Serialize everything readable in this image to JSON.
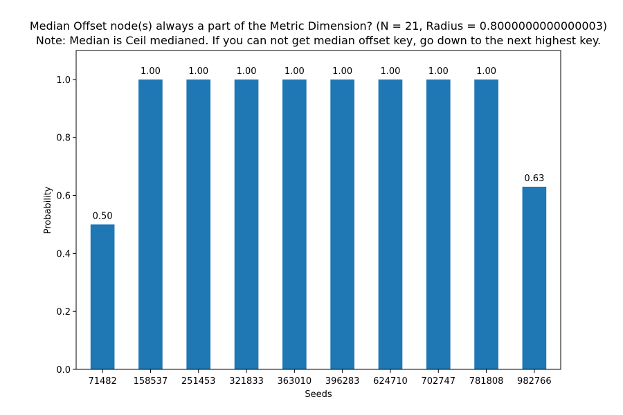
{
  "chart_data": {
    "type": "bar",
    "title_lines": [
      "Median Offset node(s) always a part of the Metric Dimension? (N = 21, Radius = 0.8000000000000003)",
      "Note: Median is Ceil medianed. If you can not get median offset key, go down to the next highest key."
    ],
    "xlabel": "Seeds",
    "ylabel": "Probability",
    "categories": [
      "71482",
      "158537",
      "251453",
      "321833",
      "363010",
      "396283",
      "624710",
      "702747",
      "781808",
      "982766"
    ],
    "values": [
      0.5,
      1.0,
      1.0,
      1.0,
      1.0,
      1.0,
      1.0,
      1.0,
      1.0,
      0.63
    ],
    "value_labels": [
      "0.50",
      "1.00",
      "1.00",
      "1.00",
      "1.00",
      "1.00",
      "1.00",
      "1.00",
      "1.00",
      "0.63"
    ],
    "ylim": [
      0,
      1.1
    ],
    "yticks": [
      0.0,
      0.2,
      0.4,
      0.6,
      0.8,
      1.0
    ],
    "ytick_labels": [
      "0.0",
      "0.2",
      "0.4",
      "0.6",
      "0.8",
      "1.0"
    ],
    "bar_color": "#1f77b4",
    "grid": false,
    "legend": "none"
  }
}
